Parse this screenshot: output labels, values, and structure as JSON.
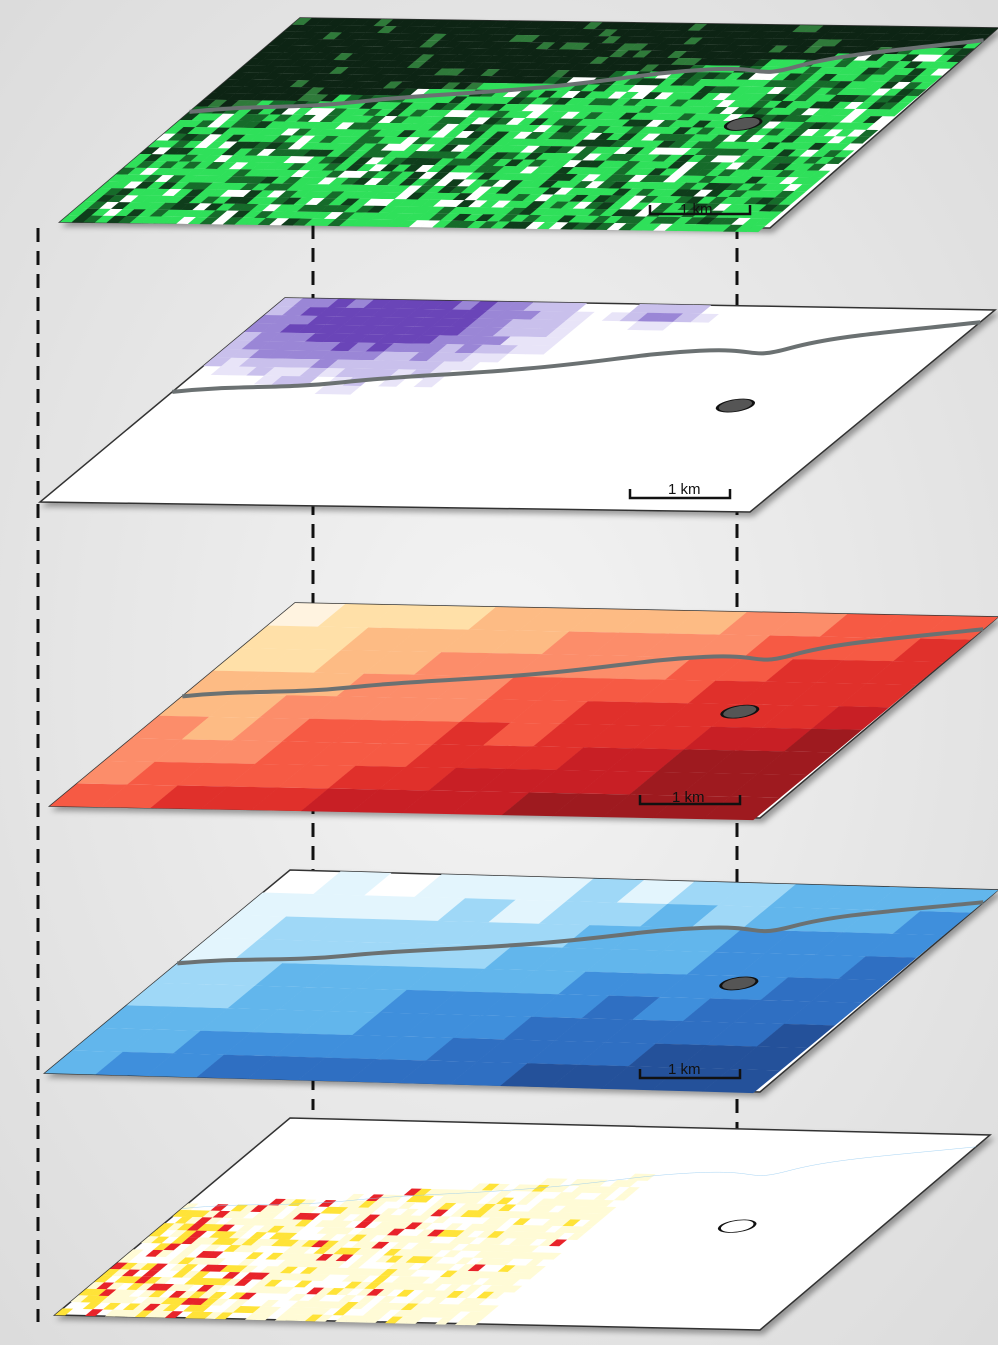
{
  "layers": [
    {
      "scale_label": "1 km"
    },
    {
      "scale_label": "1 km"
    },
    {
      "scale_label": "1 km"
    },
    {
      "scale_label": "1 km"
    }
  ]
}
